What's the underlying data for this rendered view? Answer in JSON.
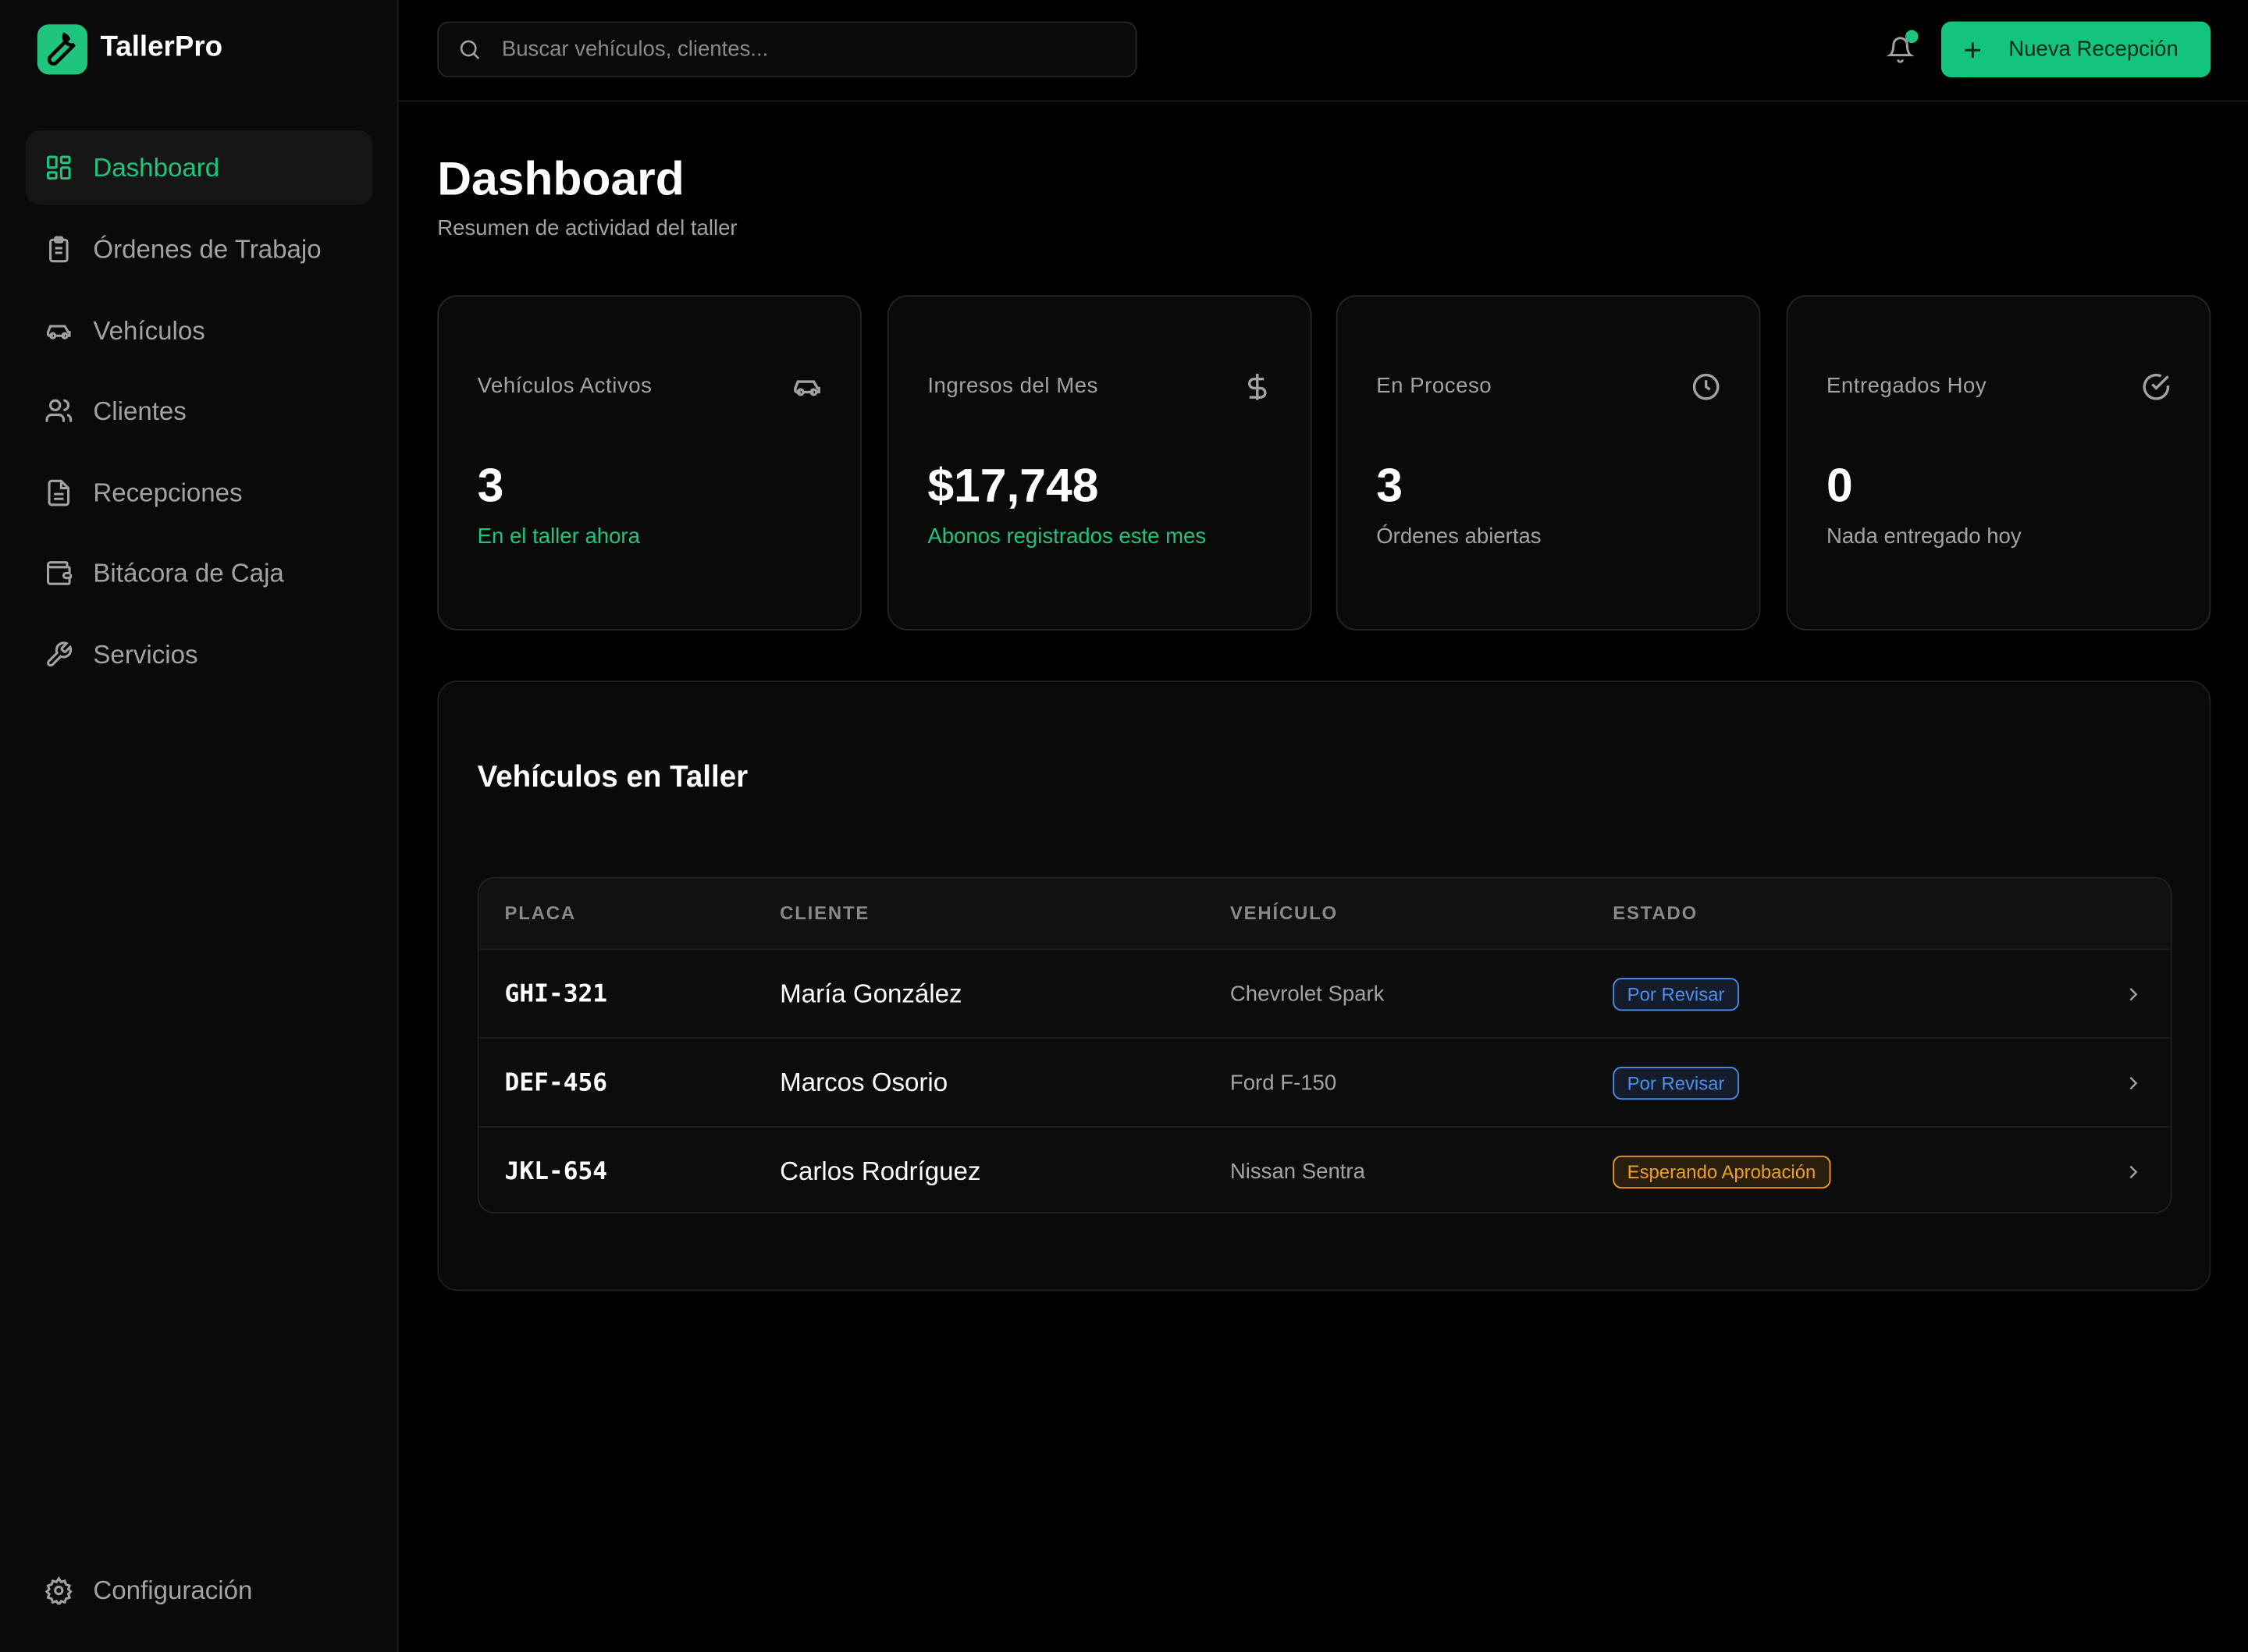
{
  "sidebar": {
    "brand": "TallerPro",
    "nav": [
      "Dashboard",
      "Órdenes de Trabajo",
      "Vehículos",
      "Clientes",
      "Recepciones",
      "Bitácora de Caja",
      "Servicios"
    ],
    "footer": "Configuración"
  },
  "topbar": {
    "search_placeholder": "Buscar vehículos, clientes...",
    "button": "Nueva Recepción"
  },
  "header": {
    "title": "Dashboard",
    "subtitle": "Resumen de actividad del taller"
  },
  "stats": [
    {
      "label": "Vehículos Activos",
      "value": "3",
      "note": "En el taller ahora",
      "note_color": "#1fc47d"
    },
    {
      "label": "Ingresos del Mes",
      "value": "$17,748",
      "note": "Abonos registrados este mes",
      "note_color": "#1fc47d"
    },
    {
      "label": "En Proceso",
      "value": "3",
      "note": "Órdenes abiertas",
      "note_color": "#a3a3a3"
    },
    {
      "label": "Entregados Hoy",
      "value": "0",
      "note": "Nada entregado hoy",
      "note_color": "#a3a3a3"
    }
  ],
  "table": {
    "title": "Vehículos en Taller",
    "columns": [
      "PLACA",
      "CLIENTE",
      "VEHÍCULO",
      "ESTADO"
    ],
    "rows": [
      {
        "plate": "GHI-321",
        "client": "María González",
        "vehicle": "Chevrolet Spark",
        "status": "Por Revisar",
        "status_color": "#4f8ff0"
      },
      {
        "plate": "DEF-456",
        "client": "Marcos Osorio",
        "vehicle": "Ford F-150",
        "status": "Por Revisar",
        "status_color": "#4f8ff0"
      },
      {
        "plate": "JKL-654",
        "client": "Carlos Rodríguez",
        "vehicle": "Nissan Sentra",
        "status": "Esperando Aprobación",
        "status_color": "#f0a020"
      }
    ]
  }
}
